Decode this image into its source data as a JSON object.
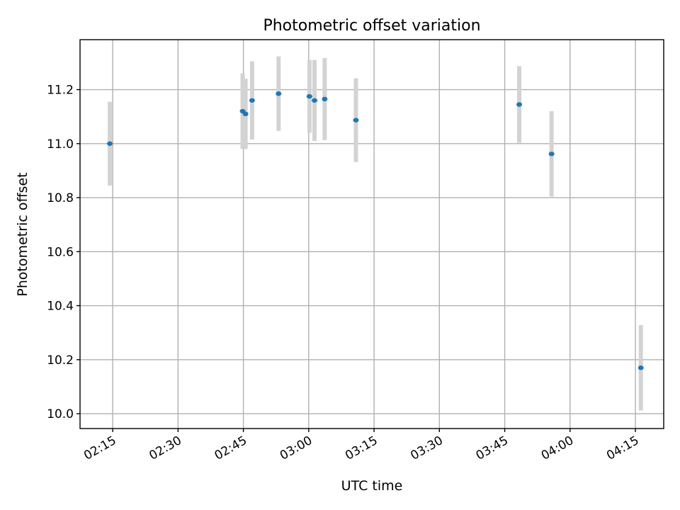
{
  "chart_data": {
    "type": "scatter",
    "title": "Photometric offset variation",
    "xlabel": "UTC time",
    "ylabel": "Photometric offset",
    "x_ticks": [
      "02:15",
      "02:30",
      "02:45",
      "03:00",
      "03:15",
      "03:30",
      "03:45",
      "04:00",
      "04:15"
    ],
    "y_ticks": [
      "10.0",
      "10.2",
      "10.4",
      "10.6",
      "10.8",
      "11.0",
      "11.2"
    ],
    "xlim": [
      "02:07:30",
      "04:21:30"
    ],
    "ylim": [
      9.945,
      11.385
    ],
    "grid": true,
    "marker_color": "#1f77b4",
    "errorbar_color": "#d3d3d3",
    "points": [
      {
        "x": "02:14:20",
        "y": 11.0,
        "yerr": 0.155
      },
      {
        "x": "02:44:50",
        "y": 11.12,
        "yerr": 0.14
      },
      {
        "x": "02:45:30",
        "y": 11.11,
        "yerr": 0.13
      },
      {
        "x": "02:47:00",
        "y": 11.16,
        "yerr": 0.145
      },
      {
        "x": "02:53:05",
        "y": 11.185,
        "yerr": 0.138
      },
      {
        "x": "03:00:10",
        "y": 11.175,
        "yerr": 0.135
      },
      {
        "x": "03:01:20",
        "y": 11.16,
        "yerr": 0.15
      },
      {
        "x": "03:03:40",
        "y": 11.165,
        "yerr": 0.152
      },
      {
        "x": "03:10:50",
        "y": 11.087,
        "yerr": 0.155
      },
      {
        "x": "03:48:20",
        "y": 11.145,
        "yerr": 0.142
      },
      {
        "x": "03:55:45",
        "y": 10.962,
        "yerr": 0.158
      },
      {
        "x": "04:16:15",
        "y": 10.17,
        "yerr": 0.158
      }
    ]
  }
}
